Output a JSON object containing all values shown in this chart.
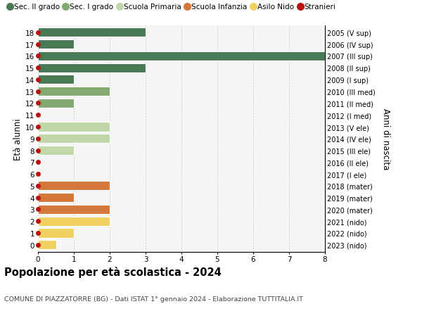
{
  "ages": [
    18,
    17,
    16,
    15,
    14,
    13,
    12,
    11,
    10,
    9,
    8,
    7,
    6,
    5,
    4,
    3,
    2,
    1,
    0
  ],
  "right_labels": [
    "2005 (V sup)",
    "2006 (IV sup)",
    "2007 (III sup)",
    "2008 (II sup)",
    "2009 (I sup)",
    "2010 (III med)",
    "2011 (II med)",
    "2012 (I med)",
    "2013 (V ele)",
    "2014 (IV ele)",
    "2015 (III ele)",
    "2016 (II ele)",
    "2017 (I ele)",
    "2018 (mater)",
    "2019 (mater)",
    "2020 (mater)",
    "2021 (nido)",
    "2022 (nido)",
    "2023 (nido)"
  ],
  "values": [
    3,
    1,
    8,
    3,
    1,
    2,
    1,
    0,
    2,
    2,
    1,
    0,
    0,
    2,
    1,
    2,
    2,
    1,
    0.5
  ],
  "colors": [
    "#4a7a55",
    "#4a7a55",
    "#4a7a55",
    "#4a7a55",
    "#4a7a55",
    "#82aa70",
    "#82aa70",
    "#82aa70",
    "#c0d8a8",
    "#c0d8a8",
    "#c0d8a8",
    "#c0d8a8",
    "#c0d8a8",
    "#d4773a",
    "#d4773a",
    "#d4773a",
    "#f0d060",
    "#f0d060",
    "#f0d060"
  ],
  "stranieri_color": "#bb1111",
  "legend_labels": [
    "Sec. II grado",
    "Sec. I grado",
    "Scuola Primaria",
    "Scuola Infanzia",
    "Asilo Nido",
    "Stranieri"
  ],
  "legend_colors": [
    "#4a7a55",
    "#82aa70",
    "#c0d8a8",
    "#d4773a",
    "#f0d060",
    "#bb1111"
  ],
  "title": "Popolazione per età scolastica - 2024",
  "subtitle": "COMUNE DI PIAZZATORRE (BG) - Dati ISTAT 1° gennaio 2024 - Elaborazione TUTTITALIA.IT",
  "ylabel_left": "Età alunni",
  "ylabel_right": "Anni di nascita",
  "xlim": [
    0,
    8
  ],
  "background_color": "#f5f5f5",
  "grid_color": "#cccccc",
  "bar_edge_color": "white"
}
